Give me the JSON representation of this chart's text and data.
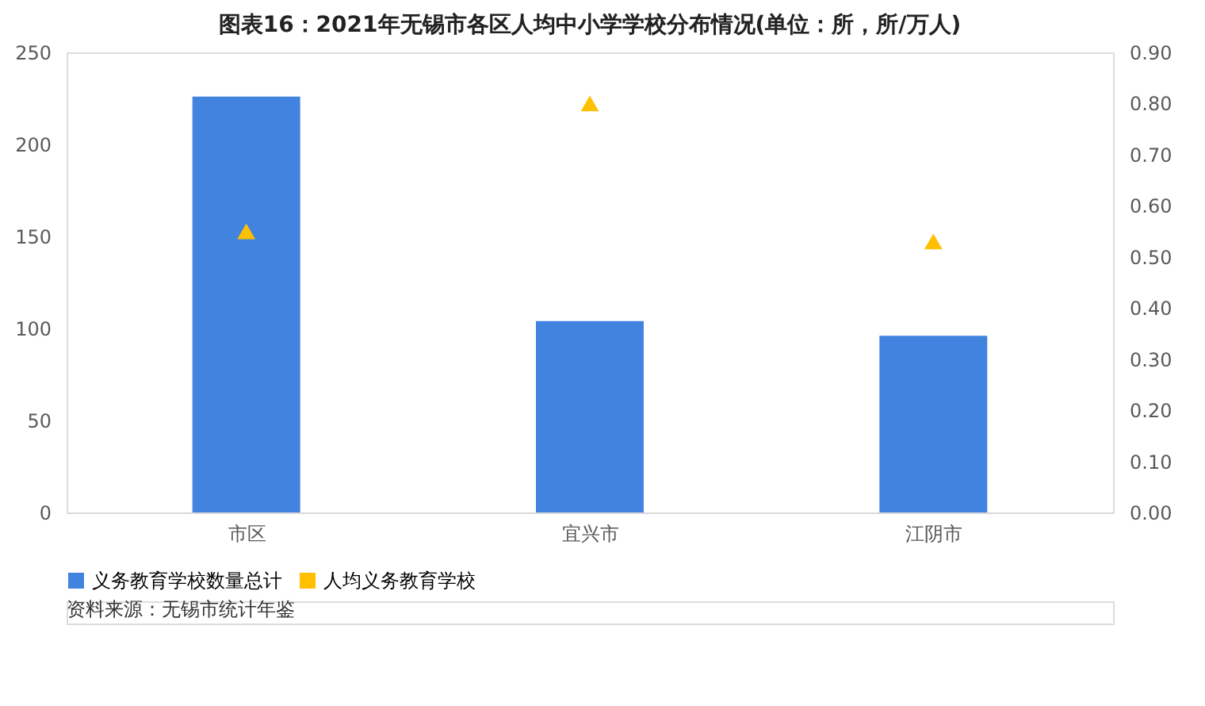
{
  "chart_data": {
    "type": "bar",
    "title": "图表16：2021年无锡市各区人均中小学学校分布情况(单位：所，所/万人)",
    "categories": [
      "市区",
      "宜兴市",
      "江阴市"
    ],
    "series": [
      {
        "name": "义务教育学校数量总计",
        "color": "#4283e0",
        "values": [
          226,
          104,
          96
        ]
      },
      {
        "name": "人均义务教育学校",
        "color": "#ffc000",
        "type": "scatter",
        "axis": "y2",
        "marker": "triangle",
        "values": [
          0.55,
          0.8,
          0.53
        ]
      }
    ],
    "ylim": [
      0,
      250
    ],
    "yticks": [
      0,
      50,
      100,
      150,
      200,
      250
    ],
    "y2lim": [
      0,
      0.9
    ],
    "y2ticks": [
      {
        "value": 0,
        "label": "0.00"
      },
      {
        "value": 0.1,
        "label": "0.10"
      },
      {
        "value": 0.2,
        "label": "0.20"
      },
      {
        "value": 0.3,
        "label": "0.30"
      },
      {
        "value": 0.4,
        "label": "0.40"
      },
      {
        "value": 0.5,
        "label": "0.50"
      },
      {
        "value": 0.6,
        "label": "0.60"
      },
      {
        "value": 0.7,
        "label": "0.70"
      },
      {
        "value": 0.8,
        "label": "0.80"
      },
      {
        "value": 0.9,
        "label": "0.90"
      }
    ],
    "grid": false,
    "legend": "bottom",
    "annotations": [
      "资料来源：无锡市统计年鉴"
    ]
  }
}
